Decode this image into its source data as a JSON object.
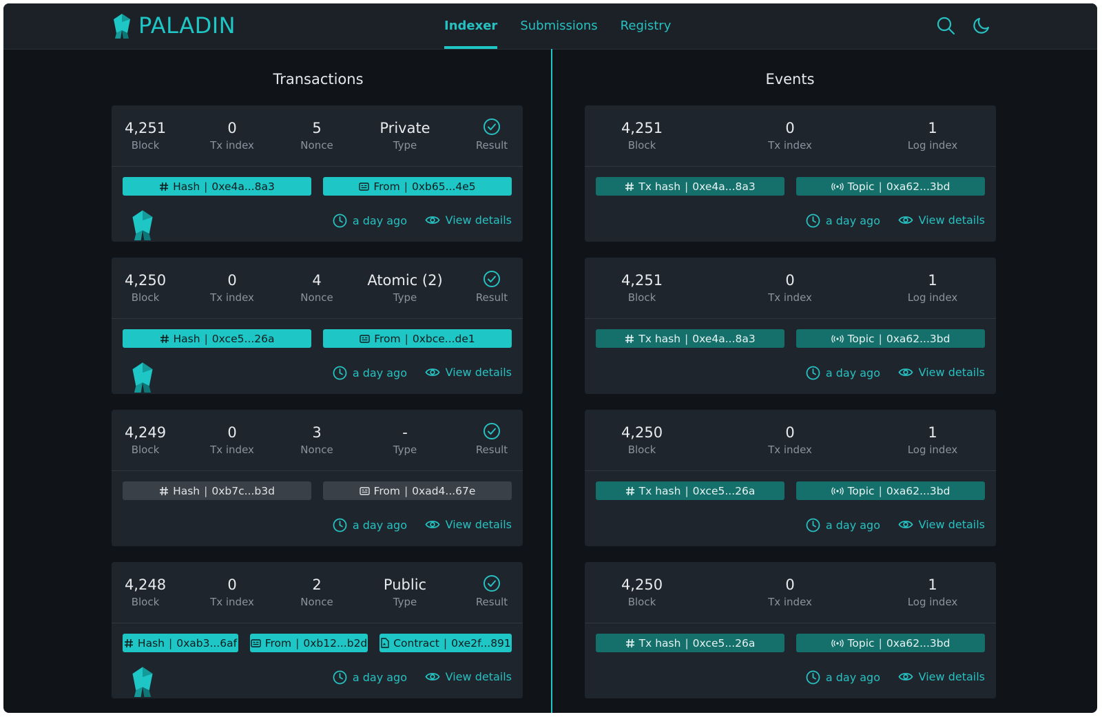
{
  "brand": {
    "name": "PALADIN"
  },
  "nav": {
    "tabs": [
      "Indexer",
      "Submissions",
      "Registry"
    ],
    "active": 0
  },
  "icons": {
    "search": "search-icon",
    "theme": "moon-icon"
  },
  "colors": {
    "accent": "#1ec6c6",
    "pill_dark": "#15706c",
    "pill_gray": "#3a4048"
  },
  "labels": {
    "block": "Block",
    "tx_index": "Tx index",
    "nonce": "Nonce",
    "type": "Type",
    "result": "Result",
    "log_index": "Log index",
    "hash": "Hash",
    "from": "From",
    "contract": "Contract",
    "tx_hash": "Tx hash",
    "topic": "Topic",
    "time": "a day ago",
    "view": "View details"
  },
  "transactions": {
    "title": "Transactions",
    "items": [
      {
        "block": "4,251",
        "tx_index": "0",
        "nonce": "5",
        "type": "Private",
        "hash": "0xe4a...8a3",
        "from": "0xb65...4e5",
        "contract": "",
        "style": "teal",
        "logo": true
      },
      {
        "block": "4,250",
        "tx_index": "0",
        "nonce": "4",
        "type": "Atomic (2)",
        "hash": "0xce5...26a",
        "from": "0xbce...de1",
        "contract": "",
        "style": "teal",
        "logo": true
      },
      {
        "block": "4,249",
        "tx_index": "0",
        "nonce": "3",
        "type": "-",
        "hash": "0xb7c...b3d",
        "from": "0xad4...67e",
        "contract": "",
        "style": "gray",
        "logo": false
      },
      {
        "block": "4,248",
        "tx_index": "0",
        "nonce": "2",
        "type": "Public",
        "hash": "0xab3...6af",
        "from": "0xb12...b2d",
        "contract": "0xe2f...891",
        "style": "teal",
        "logo": true
      }
    ]
  },
  "events": {
    "title": "Events",
    "items": [
      {
        "block": "4,251",
        "tx_index": "0",
        "log_index": "1",
        "tx_hash": "0xe4a...8a3",
        "topic": "0xa62...3bd"
      },
      {
        "block": "4,251",
        "tx_index": "0",
        "log_index": "1",
        "tx_hash": "0xe4a...8a3",
        "topic": "0xa62...3bd"
      },
      {
        "block": "4,250",
        "tx_index": "0",
        "log_index": "1",
        "tx_hash": "0xce5...26a",
        "topic": "0xa62...3bd"
      },
      {
        "block": "4,250",
        "tx_index": "0",
        "log_index": "1",
        "tx_hash": "0xce5...26a",
        "topic": "0xa62...3bd"
      }
    ]
  }
}
